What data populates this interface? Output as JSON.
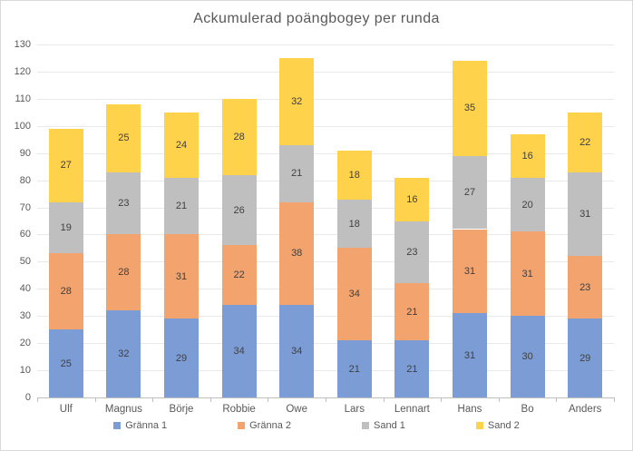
{
  "chart_data": {
    "type": "bar",
    "stacked": true,
    "title": "Ackumulerad poängbogey per runda",
    "categories": [
      "Ulf",
      "Magnus",
      "Börje",
      "Robbie",
      "Owe",
      "Lars",
      "Lennart",
      "Hans",
      "Bo",
      "Anders"
    ],
    "series": [
      {
        "name": "Gränna 1",
        "color": "#7C9CD5",
        "values": [
          25,
          32,
          29,
          34,
          34,
          21,
          21,
          31,
          30,
          29
        ]
      },
      {
        "name": "Gränna 2",
        "color": "#F2A36E",
        "values": [
          28,
          28,
          31,
          22,
          38,
          34,
          21,
          31,
          31,
          23
        ]
      },
      {
        "name": "Sand 1",
        "color": "#BFBFBF",
        "values": [
          19,
          23,
          21,
          26,
          21,
          18,
          23,
          27,
          20,
          31
        ]
      },
      {
        "name": "Sand 2",
        "color": "#FFD24C",
        "values": [
          27,
          25,
          24,
          28,
          32,
          18,
          16,
          35,
          16,
          22
        ]
      }
    ],
    "totals": [
      99,
      108,
      105,
      110,
      125,
      91,
      81,
      124,
      97,
      105
    ],
    "ylim": [
      0,
      130
    ],
    "ytick_step": 10,
    "grid": true,
    "data_labels": true,
    "legend_position": "bottom"
  },
  "ui_colors": {
    "grid": "#E9E9E9",
    "axis": "#BFBFBF",
    "tick_label": "#595959",
    "data_label": "#404040",
    "title": "#595959",
    "frame_border": "#D9D9D9"
  }
}
